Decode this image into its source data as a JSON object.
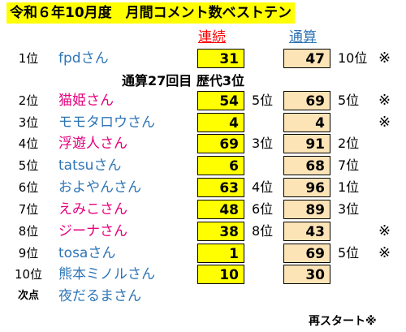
{
  "title": "令和６年10月度　月間コメント数ベストテン",
  "headers": {
    "consecutive": "連続",
    "total": "通算"
  },
  "milestone": "通算27回目 歴代3位",
  "restart_note": "再スタート※",
  "mark_symbol": "※",
  "colors": {
    "title_bg": "#ffff00",
    "consecutive_bg": "#ffff00",
    "total_bg": "#fce4b6",
    "pink": "#e6007e",
    "blue": "#2e75b6"
  },
  "rows": [
    {
      "rank": "1位",
      "name": "fpdさん",
      "name_color": "blue",
      "consecutive": "31",
      "consecutive_rank": "",
      "total": "47",
      "total_rank": "10位",
      "mark": "※"
    },
    {
      "rank": "2位",
      "name": "猫姫さん",
      "name_color": "pink",
      "consecutive": "54",
      "consecutive_rank": "5位",
      "total": "69",
      "total_rank": "5位",
      "mark": "※"
    },
    {
      "rank": "3位",
      "name": "モモタロウさん",
      "name_color": "blue",
      "consecutive": "4",
      "consecutive_rank": "",
      "total": "4",
      "total_rank": "",
      "mark": "※"
    },
    {
      "rank": "4位",
      "name": "浮遊人さん",
      "name_color": "pink",
      "consecutive": "69",
      "consecutive_rank": "3位",
      "total": "91",
      "total_rank": "2位",
      "mark": ""
    },
    {
      "rank": "5位",
      "name": "tatsuさん",
      "name_color": "blue",
      "consecutive": "6",
      "consecutive_rank": "",
      "total": "68",
      "total_rank": "7位",
      "mark": ""
    },
    {
      "rank": "6位",
      "name": "およやんさん",
      "name_color": "blue",
      "consecutive": "63",
      "consecutive_rank": "4位",
      "total": "96",
      "total_rank": "1位",
      "mark": ""
    },
    {
      "rank": "7位",
      "name": "えみこさん",
      "name_color": "pink",
      "consecutive": "48",
      "consecutive_rank": "6位",
      "total": "89",
      "total_rank": "3位",
      "mark": ""
    },
    {
      "rank": "8位",
      "name": "ジーナさん",
      "name_color": "pink",
      "consecutive": "38",
      "consecutive_rank": "8位",
      "total": "43",
      "total_rank": "",
      "mark": "※"
    },
    {
      "rank": "9位",
      "name": "tosaさん",
      "name_color": "blue",
      "consecutive": "1",
      "consecutive_rank": "",
      "total": "69",
      "total_rank": "5位",
      "mark": "※"
    },
    {
      "rank": "10位",
      "name": "熊本ミノルさん",
      "name_color": "blue",
      "consecutive": "10",
      "consecutive_rank": "",
      "total": "30",
      "total_rank": "",
      "mark": ""
    },
    {
      "rank": "次点",
      "name": "夜だるまさん",
      "name_color": "blue"
    }
  ]
}
